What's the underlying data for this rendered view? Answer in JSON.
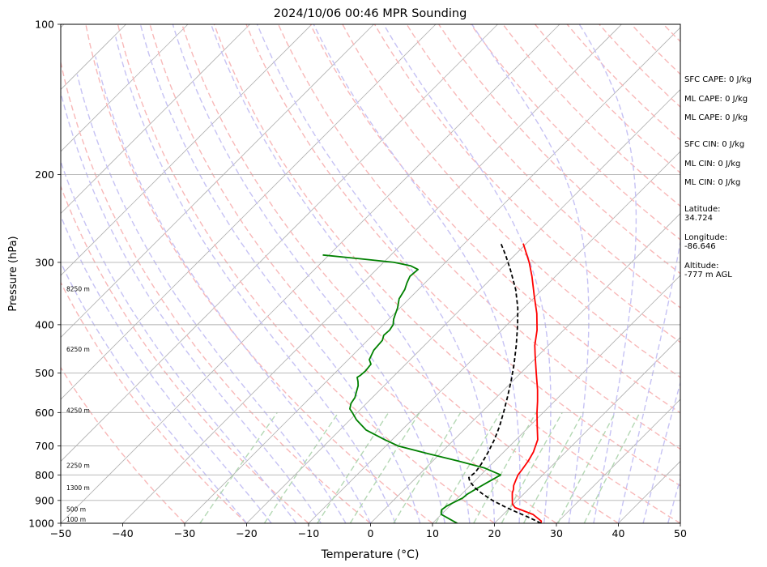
{
  "chart_data": {
    "type": "line",
    "title": "2024/10/06 00:46 MPR Sounding",
    "xlabel": "Temperature (°C)",
    "ylabel": "Pressure (hPa)",
    "xlim": [
      -50,
      50
    ],
    "ylim": [
      1000,
      100
    ],
    "y_scale": "log",
    "skew": true,
    "grid": true,
    "x_ticks": [
      -50,
      -40,
      -30,
      -20,
      -10,
      0,
      10,
      20,
      30,
      40,
      50
    ],
    "y_ticks": [
      100,
      200,
      300,
      400,
      500,
      600,
      700,
      800,
      900,
      1000
    ],
    "series": [
      {
        "color": "#ff0000",
        "points": [
          [
            1000,
            27.5
          ],
          [
            990,
            27.2
          ],
          [
            975,
            26.0
          ],
          [
            960,
            24.8
          ],
          [
            945,
            22.8
          ],
          [
            930,
            20.8
          ],
          [
            915,
            19.8
          ],
          [
            900,
            19.2
          ],
          [
            885,
            18.6
          ],
          [
            870,
            18.0
          ],
          [
            855,
            17.6
          ],
          [
            840,
            17.0
          ],
          [
            820,
            16.5
          ],
          [
            800,
            16.0
          ],
          [
            780,
            15.8
          ],
          [
            750,
            15.4
          ],
          [
            720,
            14.8
          ],
          [
            680,
            13.5
          ],
          [
            640,
            11.3
          ],
          [
            600,
            9.0
          ],
          [
            570,
            7.3
          ],
          [
            540,
            5.4
          ],
          [
            500,
            2.5
          ],
          [
            460,
            -0.6
          ],
          [
            440,
            -2.2
          ],
          [
            410,
            -4.3
          ],
          [
            380,
            -7.0
          ],
          [
            350,
            -10.3
          ],
          [
            320,
            -13.8
          ],
          [
            300,
            -16.5
          ],
          [
            275,
            -20.5
          ]
        ]
      },
      {
        "color": "#008000",
        "points": [
          [
            1000,
            14.0
          ],
          [
            990,
            13.0
          ],
          [
            975,
            11.5
          ],
          [
            960,
            10.0
          ],
          [
            950,
            9.6
          ],
          [
            940,
            9.3
          ],
          [
            925,
            9.5
          ],
          [
            910,
            10.0
          ],
          [
            890,
            10.8
          ],
          [
            875,
            10.9
          ],
          [
            850,
            11.6
          ],
          [
            830,
            12.2
          ],
          [
            815,
            12.7
          ],
          [
            800,
            13.2
          ],
          [
            775,
            9.5
          ],
          [
            750,
            4.0
          ],
          [
            725,
            -2.0
          ],
          [
            700,
            -8.0
          ],
          [
            680,
            -11.2
          ],
          [
            650,
            -15.8
          ],
          [
            620,
            -19.0
          ],
          [
            600,
            -20.8
          ],
          [
            590,
            -21.8
          ],
          [
            575,
            -22.5
          ],
          [
            560,
            -22.8
          ],
          [
            545,
            -23.5
          ],
          [
            530,
            -24.2
          ],
          [
            520,
            -24.9
          ],
          [
            510,
            -25.7
          ],
          [
            505,
            -25.5
          ],
          [
            495,
            -25.4
          ],
          [
            480,
            -25.6
          ],
          [
            470,
            -26.6
          ],
          [
            450,
            -27.4
          ],
          [
            430,
            -27.6
          ],
          [
            420,
            -28.2
          ],
          [
            410,
            -28.1
          ],
          [
            400,
            -28.4
          ],
          [
            390,
            -29.2
          ],
          [
            380,
            -29.8
          ],
          [
            370,
            -30.4
          ],
          [
            355,
            -31.6
          ],
          [
            340,
            -32.2
          ],
          [
            330,
            -32.9
          ],
          [
            320,
            -33.5
          ],
          [
            310,
            -33.3
          ],
          [
            305,
            -35.0
          ],
          [
            300,
            -38.3
          ],
          [
            295,
            -44.5
          ],
          [
            290,
            -51.0
          ]
        ]
      },
      {
        "color": "#000000",
        "dashed": true,
        "points": [
          [
            1000,
            27.5
          ],
          [
            975,
            24.8
          ],
          [
            950,
            21.8
          ],
          [
            925,
            18.8
          ],
          [
            900,
            16.0
          ],
          [
            875,
            13.5
          ],
          [
            850,
            11.2
          ],
          [
            825,
            9.3
          ],
          [
            810,
            8.5
          ],
          [
            790,
            8.7
          ],
          [
            760,
            8.3
          ],
          [
            720,
            7.5
          ],
          [
            680,
            6.5
          ],
          [
            640,
            5.2
          ],
          [
            600,
            3.6
          ],
          [
            560,
            1.8
          ],
          [
            520,
            -0.2
          ],
          [
            480,
            -2.5
          ],
          [
            440,
            -5.2
          ],
          [
            400,
            -8.3
          ],
          [
            370,
            -11.0
          ],
          [
            340,
            -14.3
          ],
          [
            310,
            -18.4
          ],
          [
            290,
            -21.5
          ],
          [
            275,
            -24.1
          ]
        ]
      }
    ],
    "height_labels": [
      {
        "pressure": 1000,
        "text": "100 m"
      },
      {
        "pressure": 955,
        "text": "500 m"
      },
      {
        "pressure": 865,
        "text": "1300 m"
      },
      {
        "pressure": 780,
        "text": "2250 m"
      },
      {
        "pressure": 605,
        "text": "4250 m"
      },
      {
        "pressure": 456,
        "text": "6250 m"
      },
      {
        "pressure": 345,
        "text": "8250 m"
      }
    ],
    "colors": {
      "dry_adiabat": "#f8b8b8",
      "moist_adiabat": "#c6c2f4",
      "mixing_ratio": "#b4d8b4",
      "isotherm": "#b0b0b0"
    }
  },
  "info_panel": {
    "sfc_cape": "SFC CAPE: 0 J/kg",
    "ml_cape_1": "ML CAPE: 0 J/kg",
    "ml_cape_2": "ML CAPE: 0 J/kg",
    "sfc_cin": "SFC CIN: 0 J/kg",
    "ml_cin_1": "ML CIN: 0 J/kg",
    "ml_cin_2": "ML CIN: 0 J/kg",
    "latitude": "Latitude:\n34.724",
    "longitude": "Longitude:\n-86.646",
    "altitude": "Altitude:\n-777 m AGL"
  }
}
